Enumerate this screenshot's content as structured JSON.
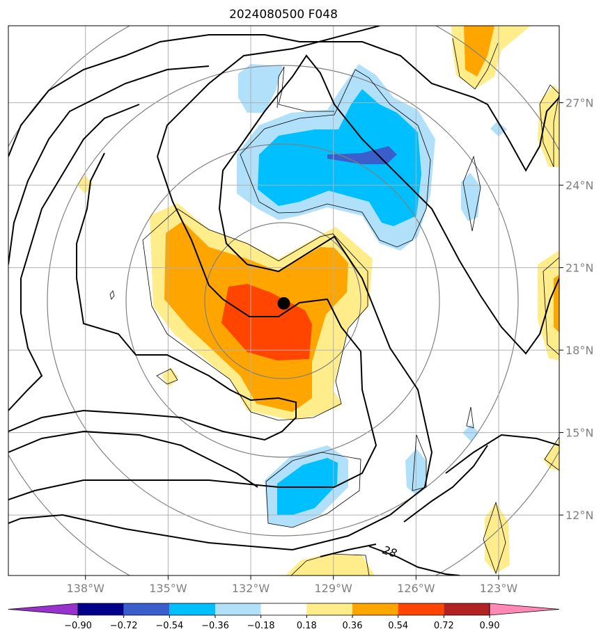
{
  "title": "2024080500 F048",
  "chart_data": {
    "type": "heatmap",
    "title": "2024080500 F048",
    "x_axis": {
      "ticks": [
        -138,
        -135,
        -132,
        -129,
        -126,
        -123
      ],
      "tick_labels": [
        "138°W",
        "135°W",
        "132°W",
        "129°W",
        "126°W",
        "123°W"
      ],
      "range": [
        -140.8,
        -120.8
      ]
    },
    "y_axis": {
      "ticks": [
        12,
        15,
        18,
        21,
        24,
        27
      ],
      "tick_labels": [
        "12°N",
        "15°N",
        "18°N",
        "21°N",
        "24°N",
        "27°N"
      ],
      "range": [
        9.8,
        29.8
      ]
    },
    "grid": true,
    "center_marker": {
      "lon": -130.8,
      "lat": 19.7
    },
    "contour_label": "28",
    "colorbar": {
      "levels": [
        -0.9,
        -0.72,
        -0.54,
        -0.36,
        -0.18,
        0.18,
        0.36,
        0.54,
        0.72,
        0.9
      ],
      "tick_labels": [
        "−0.90",
        "−0.72",
        "−0.54",
        "−0.36",
        "−0.18",
        "0.18",
        "0.36",
        "0.54",
        "0.72",
        "0.90"
      ],
      "colors": [
        "#9932cc",
        "#00008b",
        "#3a5fcd",
        "#00bfff",
        "#b0e0fa",
        "#ffffff",
        "#ffec8b",
        "#ffa500",
        "#ff4500",
        "#b22222",
        "#ff88b4"
      ],
      "extend": "both"
    }
  }
}
